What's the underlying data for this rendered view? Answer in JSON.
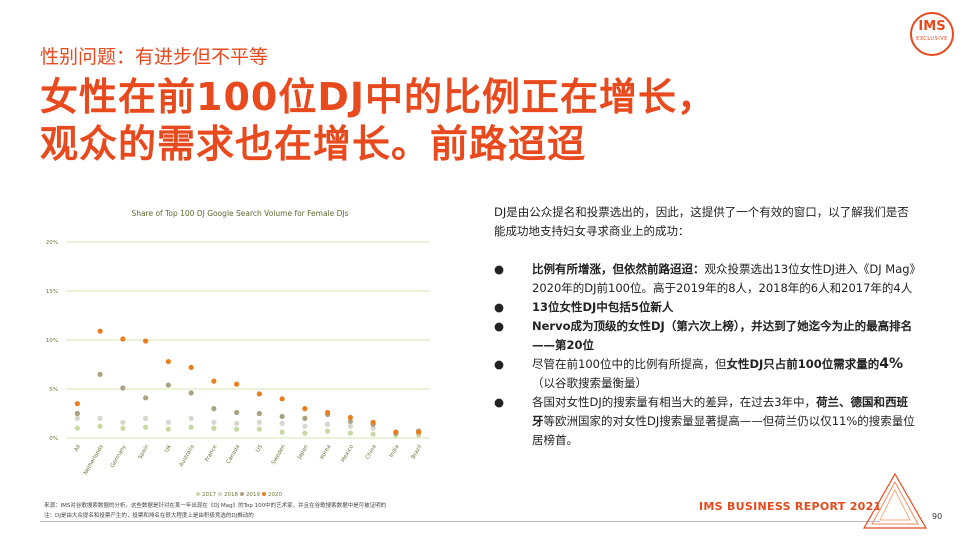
{
  "header": {
    "subtitle": "性别问题：有进步但不平等",
    "headline_line1": "女性在前100位DJ中的比例正在增长，",
    "headline_line2": "观众的需求也在增长。前路迢迢"
  },
  "logo": {
    "text": "IMS",
    "subtext": "EXCLUSIVE",
    "color": "#e8491d"
  },
  "colors": {
    "accent": "#e8491d",
    "y2017": "#c5d9a0",
    "y2018": "#d8d6ce",
    "y2019": "#a9a27e",
    "y2020": "#e87e1d",
    "grid": "#c9dd9e"
  },
  "chart_data": {
    "type": "scatter",
    "title": "Share of Top 100 DJ Google Search Volume for Female DJs",
    "categories": [
      "All",
      "Netherlands",
      "Germany",
      "Spain",
      "UK",
      "Australia",
      "France",
      "Canada",
      "US",
      "Sweden",
      "Japan",
      "Korea",
      "Mexico",
      "China",
      "India",
      "Brazil"
    ],
    "ylim": [
      0,
      20
    ],
    "yticks": [
      "0%",
      "5%",
      "10%",
      "15%",
      "20%"
    ],
    "grid": true,
    "legend_position": "bottom",
    "series": [
      {
        "name": "2017",
        "values": [
          1.0,
          1.2,
          1.0,
          1.1,
          0.9,
          1.1,
          1.0,
          0.9,
          0.9,
          0.6,
          0.5,
          0.7,
          0.5,
          0.4,
          0.3,
          0.3
        ]
      },
      {
        "name": "2018",
        "values": [
          2.0,
          2.0,
          1.6,
          2.0,
          1.6,
          2.0,
          1.6,
          1.5,
          1.6,
          1.5,
          1.2,
          1.4,
          1.2,
          1.0,
          0.6,
          0.5
        ]
      },
      {
        "name": "2019",
        "values": [
          2.5,
          6.5,
          5.1,
          4.1,
          5.4,
          4.6,
          3.0,
          2.6,
          2.5,
          2.2,
          2.0,
          2.4,
          1.7,
          1.4,
          0.5,
          0.7
        ]
      },
      {
        "name": "2020",
        "values": [
          3.5,
          10.9,
          10.1,
          9.9,
          7.8,
          7.2,
          5.8,
          5.5,
          4.5,
          4.0,
          3.0,
          2.6,
          2.1,
          1.6,
          0.6,
          0.6
        ]
      }
    ]
  },
  "body": {
    "intro": "DJ是由公众提名和投票选出的，因此，这提供了一个有效的窗口，以了解我们是否能成功地支持妇女寻求商业上的成功：",
    "bullet_char": "●",
    "b1_bold": "比例有所增涨，但依然前路迢迢：",
    "b1_text": "观众投票选出13位女性DJ进入《DJ Mag》2020年的DJ前100位。高于2019年的8人，2018年的6人和2017年的4人",
    "b2_bold": "13位女性DJ中包括5位新人",
    "b3_bold": "Nervo成为顶级的女性DJ（第六次上榜），并达到了她迄今为止的最高排名——第20位",
    "b4_text": "尽管在前100位中的比例有所提高，但",
    "b4_bold": "女性DJ只占前100位需求量的",
    "b4_big": "4%",
    "b4_tail": "（以谷歌搜索量衡量）",
    "b5_text1": "各国对女性DJ的搜索量有相当大的差异，在过去3年中，",
    "b5_bold1": "荷兰、德国和",
    "b5_bold2": "西班牙",
    "b5_text2": "等欧洲国家的对女性DJ搜索量显著提高——但荷兰仍以仅11%的搜索量位居榜首。"
  },
  "footer": {
    "note_line1": "来源：IMS对谷歌搜索数据的分析。这些数据是针对在某一年出现在《DJ Mag》的Top 100中的艺术家，并且在谷歌搜索数据中是可被证明的",
    "note_line2": "注：DJ是由大众提名和投票产生的，投票和排名在很大程度上是由积极竞选的DJ推动的",
    "brand": "IMS BUSINESS REPORT 2021",
    "page": "90"
  }
}
